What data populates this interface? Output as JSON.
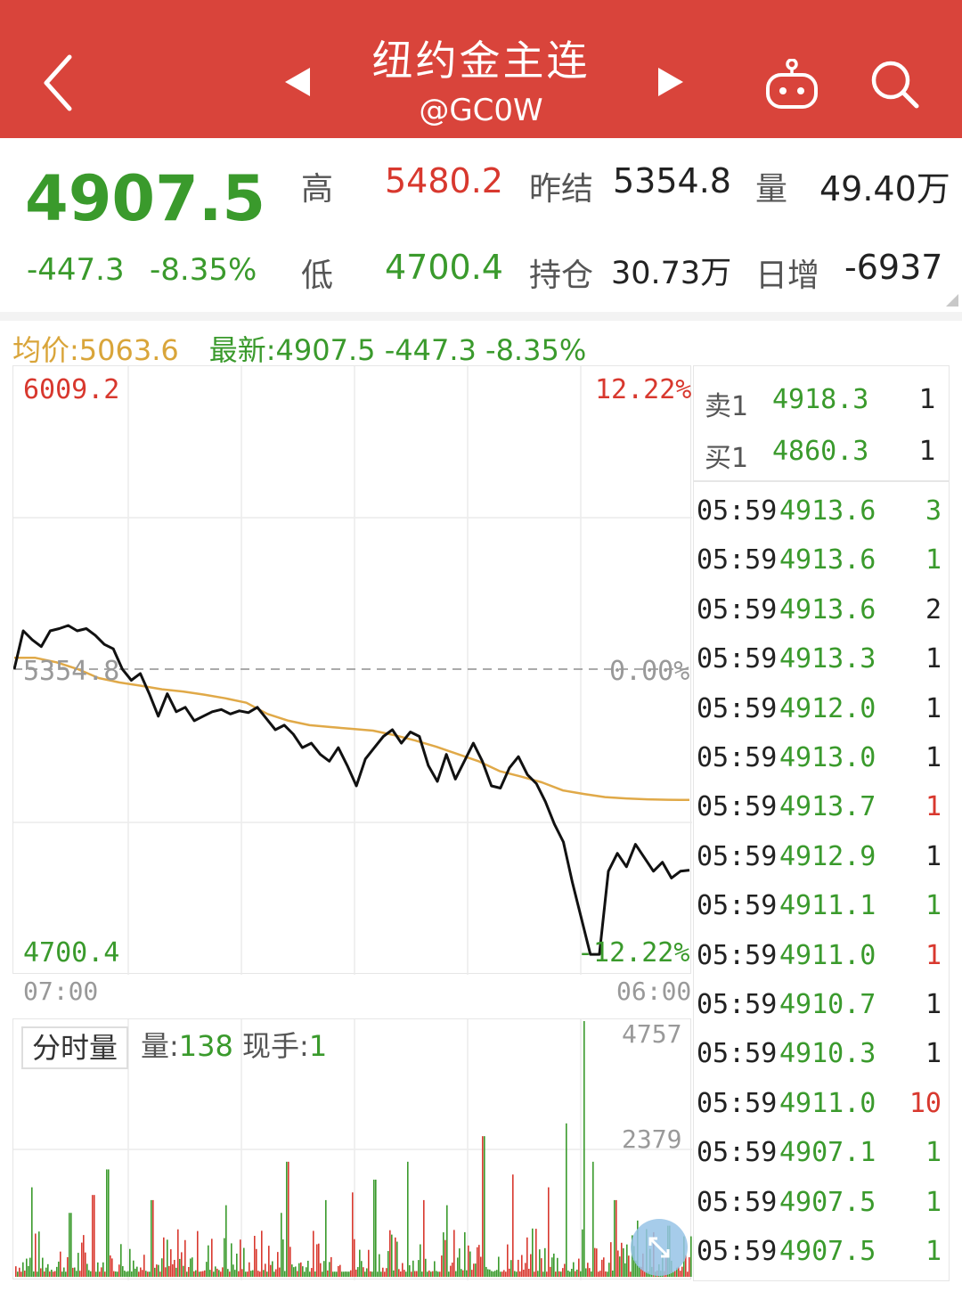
{
  "header": {
    "title": "纽约金主连",
    "subtitle": "@GC0W",
    "icons": [
      "back-arrow-icon",
      "prev-triangle-icon",
      "next-triangle-icon",
      "robot-icon",
      "search-icon"
    ],
    "background_color": "#d9443b"
  },
  "quote": {
    "last": "4907.5",
    "change": "-447.3",
    "change_pct": "-8.35%",
    "high_label": "高",
    "high": "5480.2",
    "low_label": "低",
    "low": "4700.4",
    "prev_settle_label": "昨结",
    "prev_settle": "5354.8",
    "open_interest_label": "持仓",
    "open_interest": "30.73万",
    "volume_label": "量",
    "volume": "49.40万",
    "daily_change_label": "日增",
    "daily_change": "-6937"
  },
  "info": {
    "avg_text": "均价:5063.6",
    "latest_text": "最新:4907.5 -447.3 -8.35%"
  },
  "chart": {
    "max_price": "6009.2",
    "max_pct": "12.22%",
    "ref_price": "5354.8",
    "ref_pct": "0.00%",
    "min_price": "4700.4",
    "min_pct": "-12.22%",
    "time_start": "07:00",
    "time_end": "06:00",
    "price_color": "#111111",
    "avg_color": "#e0a948"
  },
  "volume": {
    "tag": "分时量",
    "vol_label": "量:",
    "vol_value": "138",
    "hand_label": "现手:",
    "hand_value": "1",
    "scale_max": "4757",
    "scale_mid": "2379",
    "up_color": "#d8382e",
    "down_color": "#3a9a2c"
  },
  "chart_data": {
    "type": "line",
    "xlabel": "",
    "ylabel": "",
    "ylim": [
      4700.4,
      6009.2
    ],
    "x_range": [
      "07:00",
      "06:00"
    ],
    "series": [
      {
        "values": [
          5354.8,
          5440,
          5420,
          5405,
          5440,
          5445,
          5452,
          5440,
          5445,
          5430,
          5410,
          5400,
          5355,
          5330,
          5345,
          5300,
          5250,
          5300,
          5260,
          5270,
          5240,
          5250,
          5260,
          5265,
          5255,
          5262,
          5258,
          5270,
          5245,
          5220,
          5230,
          5210,
          5180,
          5190,
          5165,
          5150,
          5180,
          5140,
          5095,
          5155,
          5180,
          5205,
          5220,
          5190,
          5215,
          5205,
          5140,
          5105,
          5165,
          5110,
          5150,
          5190,
          5150,
          5095,
          5090,
          5135,
          5160,
          5120,
          5100,
          5060,
          5010,
          4970,
          4880,
          4800,
          4720,
          4720,
          4905,
          4945,
          4915,
          4965,
          4935,
          4905,
          4925,
          4890,
          4905,
          4907.5
        ]
      },
      {
        "values": [
          5380,
          5380,
          5370,
          5355,
          5335,
          5325,
          5318,
          5310,
          5305,
          5298,
          5290,
          5280,
          5255,
          5240,
          5230,
          5226,
          5222,
          5218,
          5208,
          5196,
          5182,
          5166,
          5150,
          5128,
          5116,
          5103,
          5085,
          5077,
          5070,
          5067,
          5065,
          5064,
          5063.6
        ]
      }
    ],
    "volume_ymax": 4757
  },
  "book": {
    "ask_label": "卖1",
    "ask_price": "4918.3",
    "ask_qty": "1",
    "bid_label": "买1",
    "bid_price": "4860.3",
    "bid_qty": "1"
  },
  "ticks": [
    {
      "time": "05:59",
      "price": "4913.6",
      "qty": "3",
      "side": "down"
    },
    {
      "time": "05:59",
      "price": "4913.6",
      "qty": "1",
      "side": "down"
    },
    {
      "time": "05:59",
      "price": "4913.6",
      "qty": "2",
      "side": "neutral"
    },
    {
      "time": "05:59",
      "price": "4913.3",
      "qty": "1",
      "side": "neutral"
    },
    {
      "time": "05:59",
      "price": "4912.0",
      "qty": "1",
      "side": "neutral"
    },
    {
      "time": "05:59",
      "price": "4913.0",
      "qty": "1",
      "side": "neutral"
    },
    {
      "time": "05:59",
      "price": "4913.7",
      "qty": "1",
      "side": "up"
    },
    {
      "time": "05:59",
      "price": "4912.9",
      "qty": "1",
      "side": "neutral"
    },
    {
      "time": "05:59",
      "price": "4911.1",
      "qty": "1",
      "side": "down"
    },
    {
      "time": "05:59",
      "price": "4911.0",
      "qty": "1",
      "side": "up"
    },
    {
      "time": "05:59",
      "price": "4910.7",
      "qty": "1",
      "side": "neutral"
    },
    {
      "time": "05:59",
      "price": "4910.3",
      "qty": "1",
      "side": "neutral"
    },
    {
      "time": "05:59",
      "price": "4911.0",
      "qty": "10",
      "side": "up"
    },
    {
      "time": "05:59",
      "price": "4907.1",
      "qty": "1",
      "side": "down"
    },
    {
      "time": "05:59",
      "price": "4907.5",
      "qty": "1",
      "side": "down"
    },
    {
      "time": "05:59",
      "price": "4907.5",
      "qty": "1",
      "side": "down"
    }
  ]
}
